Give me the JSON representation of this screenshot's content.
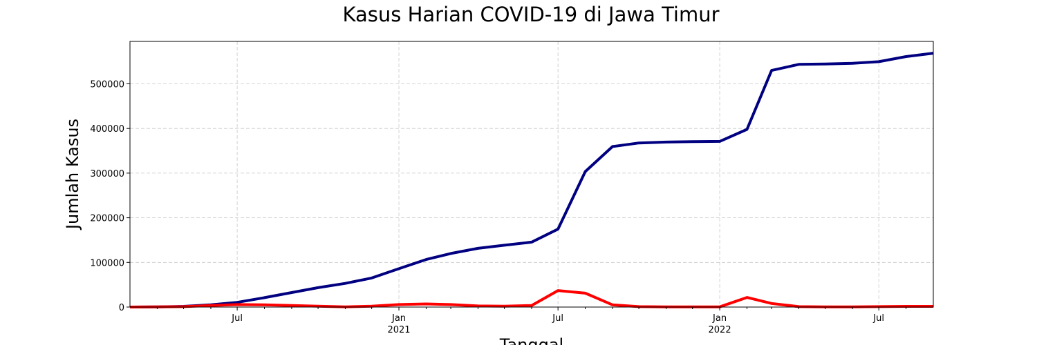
{
  "chart_data": {
    "type": "line",
    "title": "Kasus Harian COVID-19 di Jawa Timur",
    "xlabel": "Tanggal",
    "ylabel": "Jumlah Kasus",
    "x_axis": {
      "type": "date",
      "range": [
        "2020-03-01",
        "2022-09-01"
      ],
      "major_ticks": [
        {
          "date": "2020-07-01",
          "label": "Jul",
          "sublabel": ""
        },
        {
          "date": "2021-01-01",
          "label": "Jan",
          "sublabel": "2021"
        },
        {
          "date": "2021-07-01",
          "label": "Jul",
          "sublabel": ""
        },
        {
          "date": "2022-01-01",
          "label": "Jan",
          "sublabel": "2022"
        },
        {
          "date": "2022-07-01",
          "label": "Jul",
          "sublabel": ""
        }
      ],
      "minor_ticks": [
        "2020-04-01",
        "2020-05-01",
        "2020-06-01",
        "2020-08-01",
        "2020-09-01",
        "2020-10-01",
        "2020-11-01",
        "2020-12-01",
        "2021-02-01",
        "2021-03-01",
        "2021-04-01",
        "2021-05-01",
        "2021-06-01",
        "2021-08-01",
        "2021-09-01",
        "2021-10-01",
        "2021-11-01",
        "2021-12-01",
        "2022-02-01",
        "2022-03-01",
        "2022-04-01",
        "2022-05-01",
        "2022-06-01",
        "2022-08-01"
      ]
    },
    "y_axis": {
      "range": [
        0,
        595000
      ],
      "ticks": [
        0,
        100000,
        200000,
        300000,
        400000,
        500000
      ]
    },
    "grid": true,
    "series": [
      {
        "color": "#000080",
        "points": [
          [
            "2020-03-01",
            0
          ],
          [
            "2020-04-01",
            500
          ],
          [
            "2020-05-01",
            1500
          ],
          [
            "2020-06-01",
            5000
          ],
          [
            "2020-07-01",
            10500
          ],
          [
            "2020-08-01",
            21000
          ],
          [
            "2020-09-01",
            32500
          ],
          [
            "2020-10-01",
            43500
          ],
          [
            "2020-11-01",
            53000
          ],
          [
            "2020-12-01",
            65000
          ],
          [
            "2021-01-01",
            86000
          ],
          [
            "2021-02-01",
            106500
          ],
          [
            "2021-03-01",
            120000
          ],
          [
            "2021-04-01",
            131500
          ],
          [
            "2021-05-01",
            138500
          ],
          [
            "2021-06-01",
            145500
          ],
          [
            "2021-07-01",
            174500
          ],
          [
            "2021-08-01",
            303500
          ],
          [
            "2021-09-01",
            359500
          ],
          [
            "2021-10-01",
            367500
          ],
          [
            "2021-11-01",
            369500
          ],
          [
            "2021-12-01",
            370500
          ],
          [
            "2022-01-01",
            371000
          ],
          [
            "2022-02-01",
            398000
          ],
          [
            "2022-03-01",
            530000
          ],
          [
            "2022-04-01",
            543500
          ],
          [
            "2022-05-01",
            544500
          ],
          [
            "2022-06-01",
            546000
          ],
          [
            "2022-07-01",
            549500
          ],
          [
            "2022-08-01",
            561000
          ],
          [
            "2022-09-01",
            568500
          ]
        ]
      },
      {
        "color": "#ff0000",
        "points": [
          [
            "2020-03-01",
            0
          ],
          [
            "2020-04-01",
            500
          ],
          [
            "2020-05-01",
            1000
          ],
          [
            "2020-06-01",
            3500
          ],
          [
            "2020-07-01",
            5500
          ],
          [
            "2020-08-01",
            5000
          ],
          [
            "2020-09-01",
            3500
          ],
          [
            "2020-10-01",
            2000
          ],
          [
            "2020-11-01",
            500
          ],
          [
            "2020-12-01",
            2000
          ],
          [
            "2021-01-01",
            5500
          ],
          [
            "2021-02-01",
            7000
          ],
          [
            "2021-03-01",
            5500
          ],
          [
            "2021-04-01",
            2500
          ],
          [
            "2021-05-01",
            2000
          ],
          [
            "2021-06-01",
            3500
          ],
          [
            "2021-07-01",
            37000
          ],
          [
            "2021-08-01",
            31000
          ],
          [
            "2021-09-01",
            5000
          ],
          [
            "2021-10-01",
            1000
          ],
          [
            "2021-11-01",
            500
          ],
          [
            "2021-12-01",
            500
          ],
          [
            "2022-01-01",
            500
          ],
          [
            "2022-02-01",
            21500
          ],
          [
            "2022-03-01",
            8000
          ],
          [
            "2022-04-01",
            1000
          ],
          [
            "2022-05-01",
            500
          ],
          [
            "2022-06-01",
            500
          ],
          [
            "2022-07-01",
            1000
          ],
          [
            "2022-08-01",
            1500
          ],
          [
            "2022-09-01",
            1500
          ]
        ]
      }
    ]
  }
}
